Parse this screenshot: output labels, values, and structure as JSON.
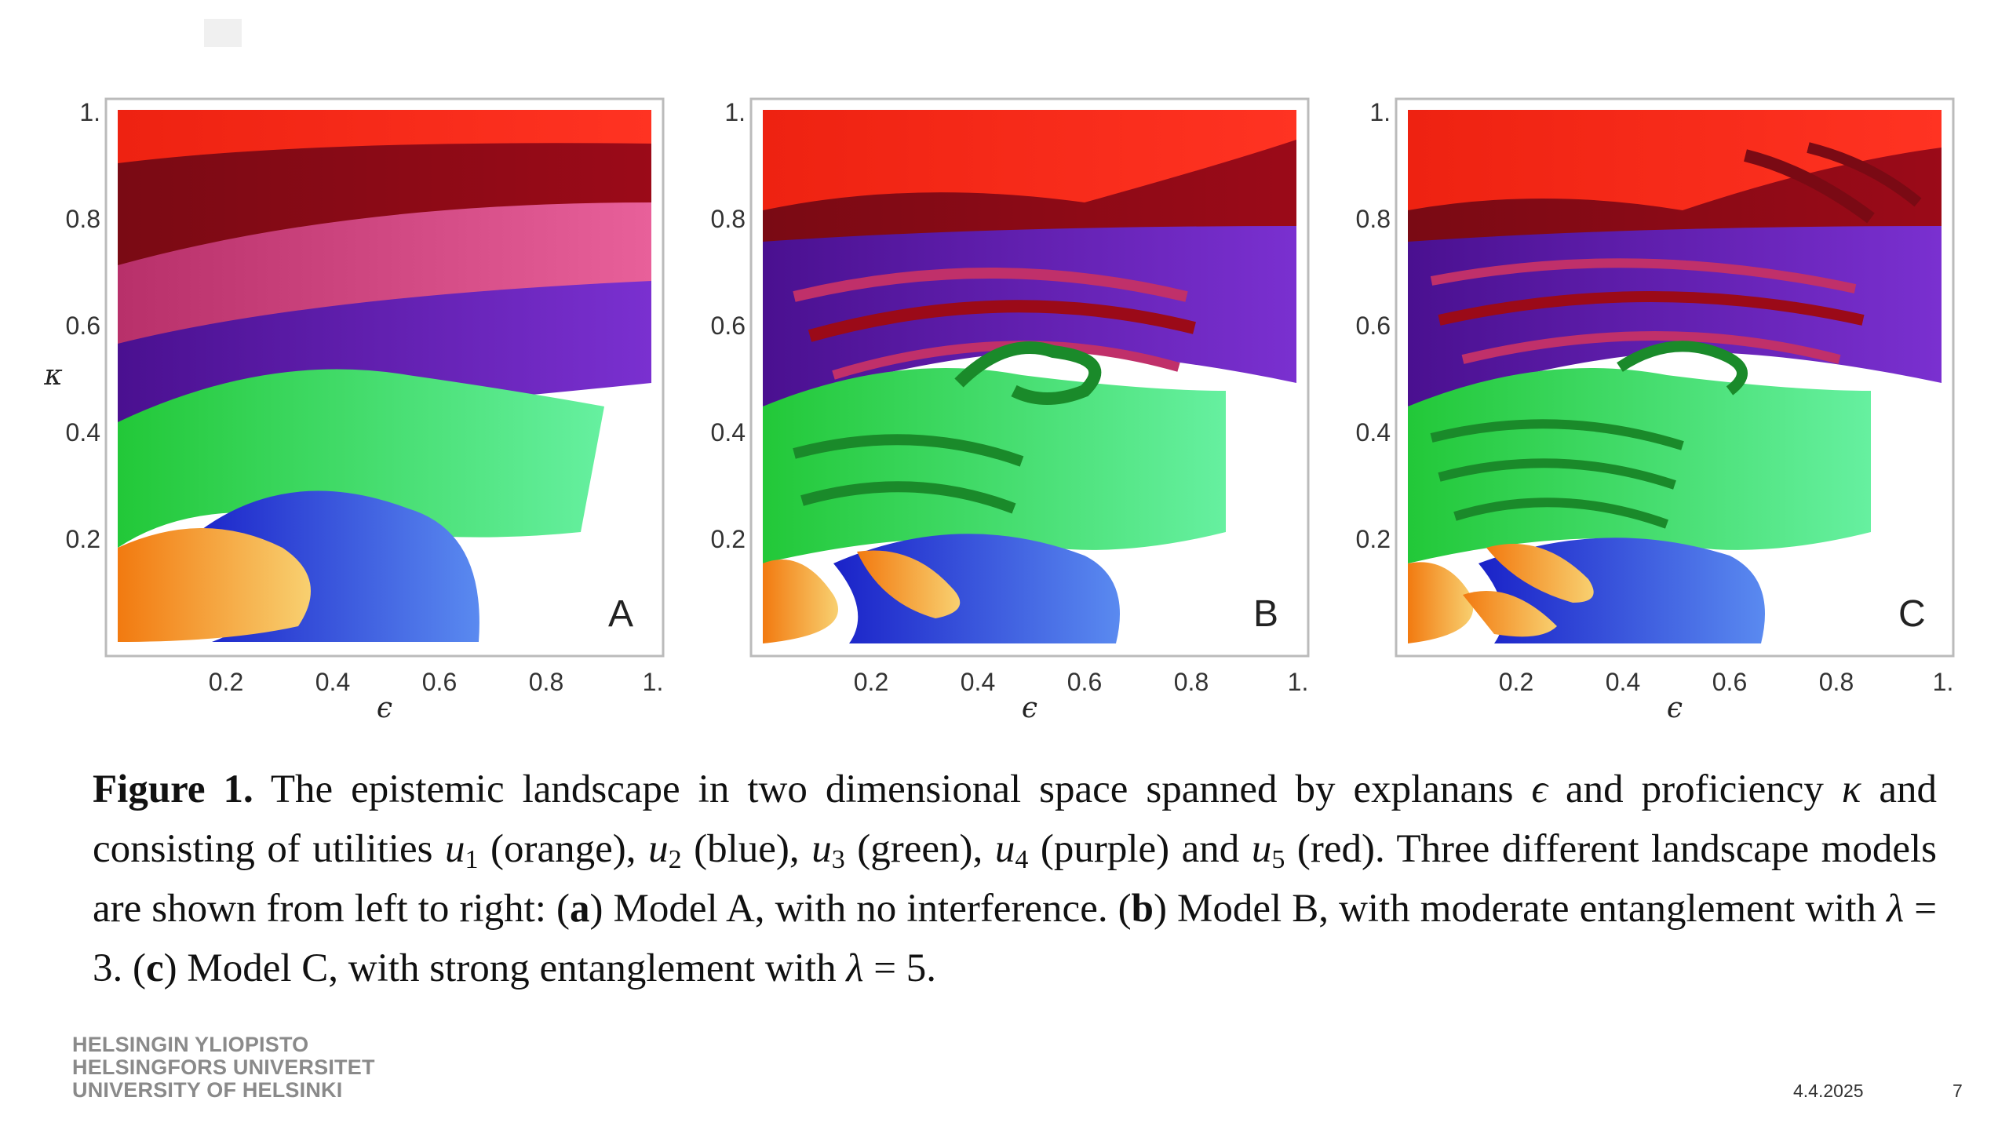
{
  "figure": {
    "panels": [
      {
        "letter": "A",
        "model": "no interference"
      },
      {
        "letter": "B",
        "model": "moderate entanglement"
      },
      {
        "letter": "C",
        "model": "strong entanglement"
      }
    ],
    "x_ticks": [
      "0.2",
      "0.4",
      "0.6",
      "0.8",
      "1."
    ],
    "y_ticks": [
      "1.",
      "0.8",
      "0.6",
      "0.4",
      "0.2"
    ],
    "x_label": "ϵ",
    "y_label": "κ",
    "colors": {
      "u1_orange": "#f28c1b",
      "u2_blue": "#2233dd",
      "u3_green": "#22dd44",
      "u4_purple": "#6a1ab0",
      "u5_red": "#ee2211"
    }
  },
  "caption": {
    "label": "Figure 1.",
    "t1": " The epistemic landscape in two dimensional space spanned by explanans ",
    "eps": "ϵ",
    "t2": " and proficiency ",
    "kappa": "κ",
    "t3": " and consisting of utilities ",
    "u": "u",
    "s1": "1",
    "t4": " (orange), ",
    "s2": "2",
    "t5": " (blue), ",
    "s3": "3",
    "t6": " (green), ",
    "s4": "4",
    "t7": " (purple) and ",
    "s5": "5",
    "t8": " (red). Three different landscape models are shown from left to right: (",
    "a": "a",
    "t9": ") Model A, with no interference. (",
    "b": "b",
    "t10": ") Model B, with moderate entanglement with ",
    "lambda": "λ",
    "eq3": " = 3. (",
    "c": "c",
    "t11": ") Model C, with strong entanglement with ",
    "eq5": " = 5."
  },
  "footer": {
    "logo_line1": "HELSINGIN YLIOPISTO",
    "logo_line2": "HELSINGFORS UNIVERSITET",
    "logo_line3": "UNIVERSITY OF HELSINKI",
    "date": "4.4.2025",
    "page": "7"
  }
}
